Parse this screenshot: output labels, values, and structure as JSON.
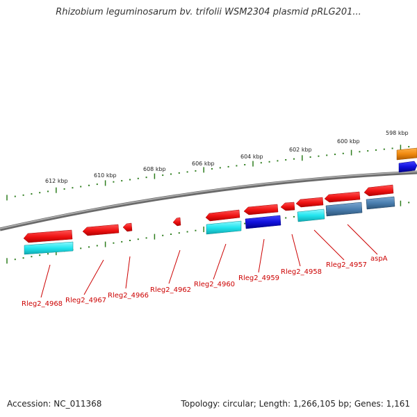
{
  "title": "Rhizobium leguminosarum bv. trifolii WSM2304 plasmid pRLG201...",
  "footer": {
    "accession": "Accession: NC_011368",
    "summary": "Topology: circular; Length: 1,266,105 bp; Genes: 1,161"
  },
  "colors": {
    "backbone": "#8a8a8a",
    "tick": "#2e7d1e",
    "gene_red": "#ee1111",
    "gene_cyan": "#22e5ee",
    "gene_blue": "#1111dd",
    "gene_steel": "#4a7fb0",
    "gene_orange": "#f08a10",
    "label": "#cc0000"
  },
  "kbp_labels": [
    "598 kbp",
    "600 kbp",
    "602 kbp",
    "604 kbp",
    "606 kbp",
    "608 kbp",
    "610 kbp",
    "612 kbp"
  ],
  "gene_labels": [
    "Rleg2_4968",
    "Rleg2_4967",
    "Rleg2_4966",
    "Rleg2_4962",
    "Rleg2_4960",
    "Rleg2_4959",
    "Rleg2_4958",
    "Rleg2_4957",
    "aspA"
  ]
}
